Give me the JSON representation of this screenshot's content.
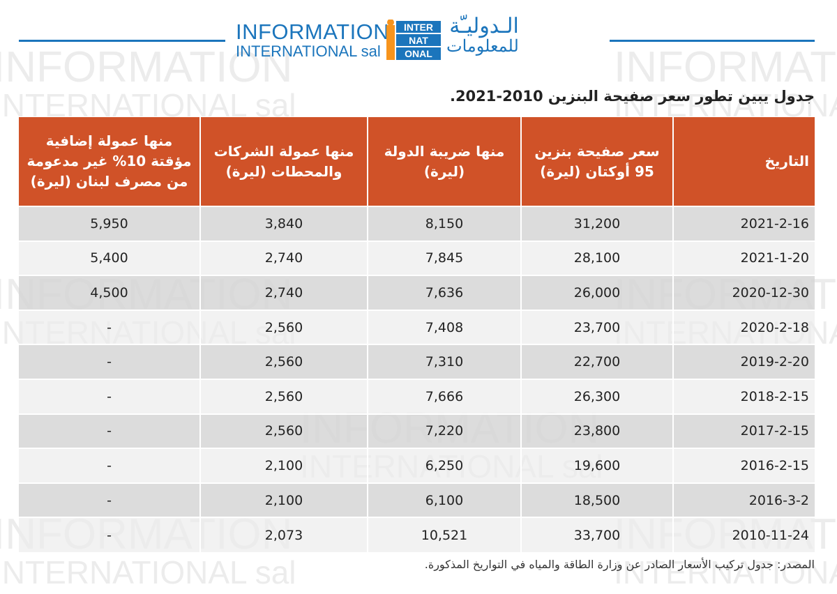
{
  "header": {
    "logo_en_line1": "INFORMATION",
    "logo_en_line2": "INTERNATIONAL sal",
    "logo_mark_lines": [
      "INTER",
      "NAT",
      "ONAL"
    ],
    "logo_ar_line1": "الـدوليـّة",
    "logo_ar_line2": "للمعلومات"
  },
  "watermark": {
    "line1": "INFORMATION",
    "line2": "INTERNATIONAL sal"
  },
  "title": "جدول يبين تطور سعر صفيحة البنزين 2010-2021.",
  "table": {
    "headers": {
      "date": "التاريخ",
      "price": "سعر صفيحة بنزين 95 أوكتان (ليرة)",
      "tax": "منها ضريبة الدولة (ليرة)",
      "commission": "منها عمولة الشركات والمحطات (ليرة)",
      "extra": "منها عمولة إضافية مؤقتة 10% غير مدعومة من مصرف لبنان (ليرة)"
    },
    "rows": [
      {
        "date": "2021-2-16",
        "price": "31,200",
        "tax": "8,150",
        "commission": "3,840",
        "extra": "5,950"
      },
      {
        "date": "2021-1-20",
        "price": "28,100",
        "tax": "7,845",
        "commission": "2,740",
        "extra": "5,400"
      },
      {
        "date": "2020-12-30",
        "price": "26,000",
        "tax": "7,636",
        "commission": "2,740",
        "extra": "4,500"
      },
      {
        "date": "2020-2-18",
        "price": "23,700",
        "tax": "7,408",
        "commission": "2,560",
        "extra": "-"
      },
      {
        "date": "2019-2-20",
        "price": "22,700",
        "tax": "7,310",
        "commission": "2,560",
        "extra": "-"
      },
      {
        "date": "2018-2-15",
        "price": "26,300",
        "tax": "7,666",
        "commission": "2,560",
        "extra": "-"
      },
      {
        "date": "2017-2-15",
        "price": "23,800",
        "tax": "7,220",
        "commission": "2,560",
        "extra": "-"
      },
      {
        "date": "2016-2-15",
        "price": "19,600",
        "tax": "6,250",
        "commission": "2,100",
        "extra": "-"
      },
      {
        "date": "2016-3-2",
        "price": "18,500",
        "tax": "6,100",
        "commission": "2,100",
        "extra": "-"
      },
      {
        "date": "2010-11-24",
        "price": "33,700",
        "tax": "10,521",
        "commission": "2,073",
        "extra": "-"
      }
    ]
  },
  "source": "المصدر: جدول تركيب الأسعار الصادر عن وزارة الطاقة والمياه في التواريخ المذكورة.",
  "colors": {
    "brand_blue": "#1b75bc",
    "brand_orange": "#f7941d",
    "header_bg": "#d05228",
    "row_dark": "#d4d4d4",
    "row_light": "#ececec"
  }
}
